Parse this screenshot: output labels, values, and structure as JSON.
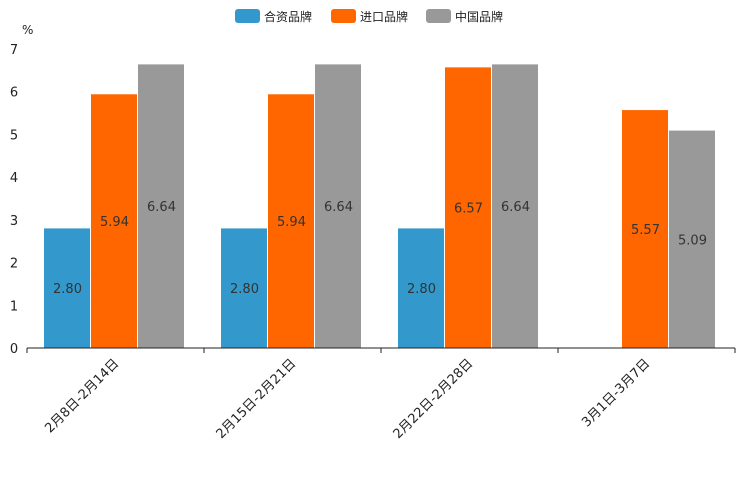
{
  "chart_data": {
    "type": "bar",
    "unit": "%",
    "categories": [
      "2月8日-2月14日",
      "2月15日-2月21日",
      "2月22日-2月28日",
      "3月1日-3月7日"
    ],
    "series": [
      {
        "name": "合资品牌",
        "color": "#3399cc",
        "values": [
          2.8,
          2.8,
          2.8,
          null
        ],
        "labels": [
          "2.80",
          "2.80",
          "2.80",
          ""
        ]
      },
      {
        "name": "进口品牌",
        "color": "#ff6600",
        "values": [
          5.94,
          5.94,
          6.57,
          5.57
        ],
        "labels": [
          "5.94",
          "5.94",
          "6.57",
          "5.57"
        ]
      },
      {
        "name": "中国品牌",
        "color": "#999999",
        "values": [
          6.64,
          6.64,
          6.64,
          5.09
        ],
        "labels": [
          "6.64",
          "6.64",
          "6.64",
          "5.09"
        ]
      }
    ],
    "ylim": [
      0,
      7
    ],
    "yticks": [
      "0",
      "1",
      "2",
      "3",
      "4",
      "5",
      "6",
      "7"
    ],
    "legend_position": "top-center",
    "grid": false
  }
}
